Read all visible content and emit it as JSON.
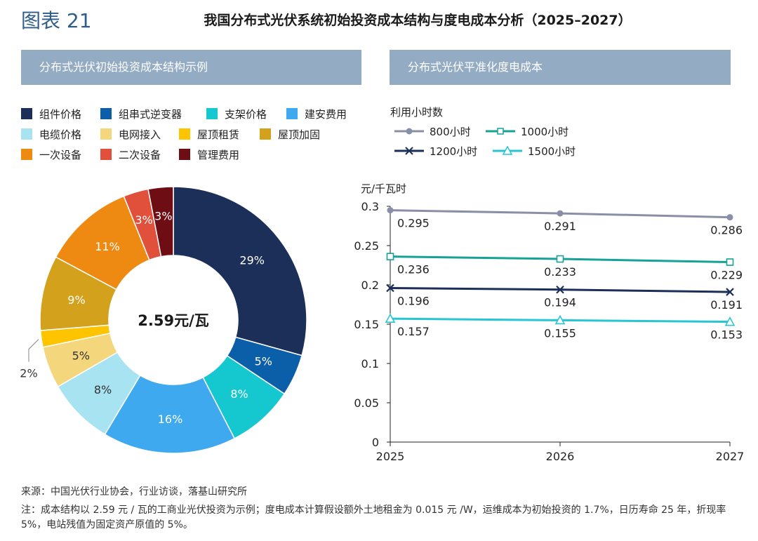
{
  "header": {
    "figure_label": "图表 21",
    "title": "我国分布式光伏系统初始投资成本结构与度电成本分析（2025–2027）"
  },
  "left_panel": {
    "title": "分布式光伏初始投资成本结构示例"
  },
  "right_panel": {
    "title": "分布式光伏平准化度电成本"
  },
  "colors": {
    "header_bar": "#93acc4",
    "slices": [
      "#1b2f58",
      "#0b5ea8",
      "#15c7cf",
      "#3fa9f0",
      "#a8e3f2",
      "#f4d77c",
      "#ffc400",
      "#d4a11c",
      "#ee8a12",
      "#e0503a",
      "#6e0e14"
    ],
    "series": [
      "#8a8fa8",
      "#16a297",
      "#1b2f58",
      "#26c6d2"
    ]
  },
  "chart_data": [
    {
      "type": "pie",
      "title": "分布式光伏初始投资成本结构示例",
      "center_label": "2.59元/瓦",
      "categories": [
        "组件价格",
        "组串式逆变器",
        "支架价格",
        "建安费用",
        "电缆价格",
        "电网接入",
        "屋顶租赁",
        "屋顶加固",
        "一次设备",
        "二次设备",
        "管理费用"
      ],
      "values": [
        29,
        5,
        8,
        16,
        8,
        5,
        2,
        9,
        11,
        3,
        3
      ],
      "labels": [
        "29%",
        "5%",
        "8%",
        "16%",
        "8%",
        "5%",
        "2%",
        "9%",
        "11%",
        "3%",
        "3%"
      ]
    },
    {
      "type": "line",
      "title": "分布式光伏平准化度电成本",
      "legend_title": "利用小时数",
      "ylabel": "元/千瓦时",
      "x": [
        "2025",
        "2026",
        "2027"
      ],
      "ylim": [
        0,
        0.3
      ],
      "yticks": [
        "0",
        "0.05",
        "0.1",
        "0.15",
        "0.2",
        "0.25",
        "0.3"
      ],
      "series": [
        {
          "name": "800小时",
          "values": [
            0.295,
            0.291,
            0.286
          ],
          "labels": [
            "0.295",
            "0.291",
            "0.286"
          ]
        },
        {
          "name": "1000小时",
          "values": [
            0.236,
            0.233,
            0.229
          ],
          "labels": [
            "0.236",
            "0.233",
            "0.229"
          ]
        },
        {
          "name": "1200小时",
          "values": [
            0.196,
            0.194,
            0.191
          ],
          "labels": [
            "0.196",
            "0.194",
            "0.191"
          ]
        },
        {
          "name": "1500小时",
          "values": [
            0.157,
            0.155,
            0.153
          ],
          "labels": [
            "0.157",
            "0.155",
            "0.153"
          ]
        }
      ]
    }
  ],
  "footer": {
    "source": "来源：中国光伏行业协会，行业访谈，落基山研究所",
    "note": "注：成本结构以 2.59 元 / 瓦的工商业光伏投资为示例；度电成本计算假设额外土地租金为 0.015 元 /W，运维成本为初始投资的 1.7%，日历寿命 25 年，折现率 5%，电站残值为固定资产原值的 5%。"
  }
}
